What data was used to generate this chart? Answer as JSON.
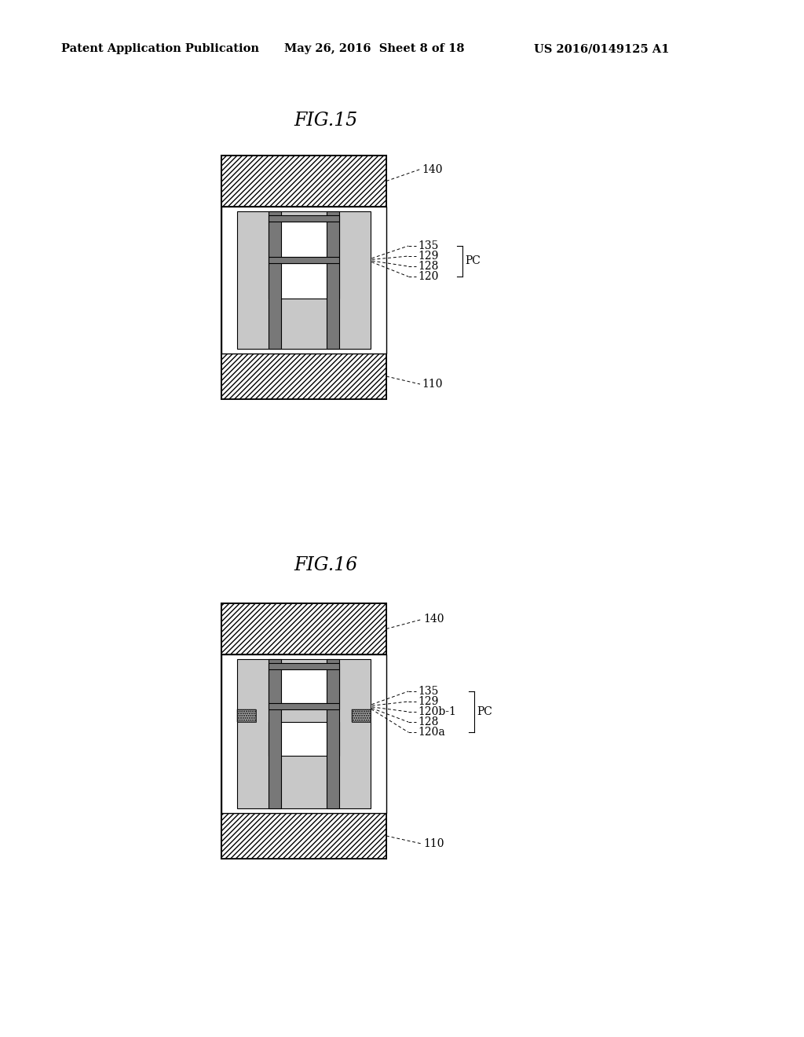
{
  "bg_color": "#ffffff",
  "header_left": "Patent Application Publication",
  "header_mid": "May 26, 2016  Sheet 8 of 18",
  "header_right": "US 2016/0149125 A1",
  "fig15_title": "FIG.15",
  "fig16_title": "FIG.16",
  "light_gray": "#c0c0c0",
  "mid_gray": "#909090",
  "dark_gray": "#606060",
  "white": "#ffffff",
  "black": "#000000",
  "granule_color": "#a8a8a8"
}
